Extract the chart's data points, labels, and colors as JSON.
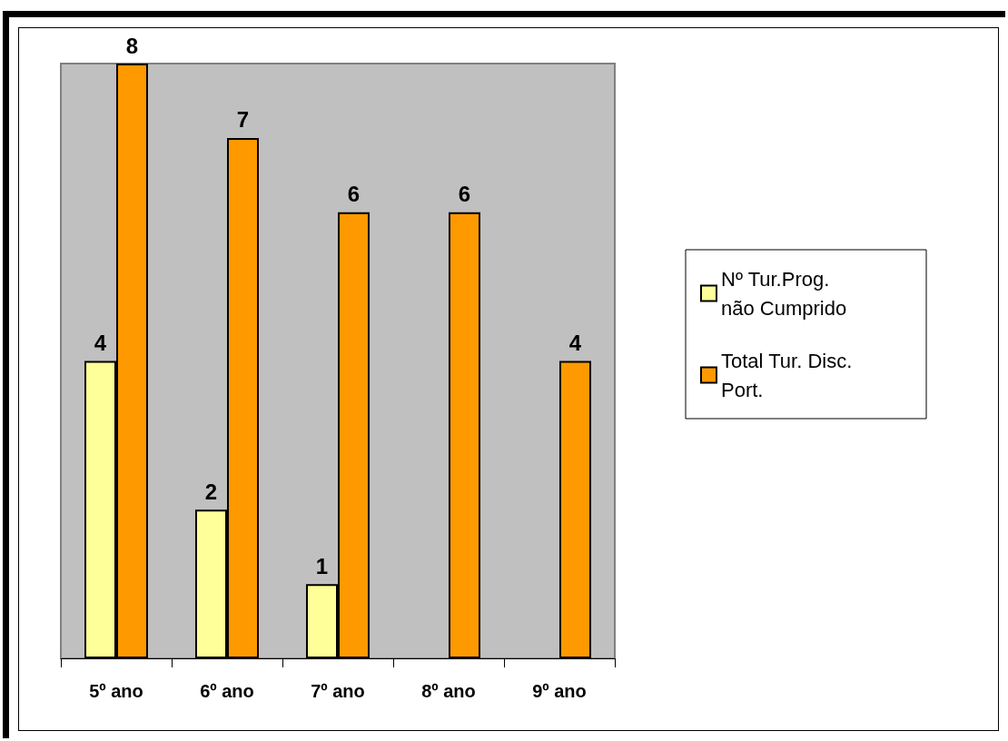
{
  "chart_data": {
    "type": "bar",
    "categories": [
      "5º ano",
      "6º ano",
      "7º ano",
      "8º ano",
      "9º ano"
    ],
    "series": [
      {
        "name": "Nº Tur.Prog. não Cumprido",
        "color": "#ffff99",
        "values": [
          4,
          2,
          1,
          null,
          null
        ]
      },
      {
        "name": "Total Tur. Disc. Port.",
        "color": "#ff9900",
        "values": [
          8,
          7,
          6,
          6,
          4
        ]
      }
    ],
    "data_labels": true,
    "legend": "right"
  }
}
